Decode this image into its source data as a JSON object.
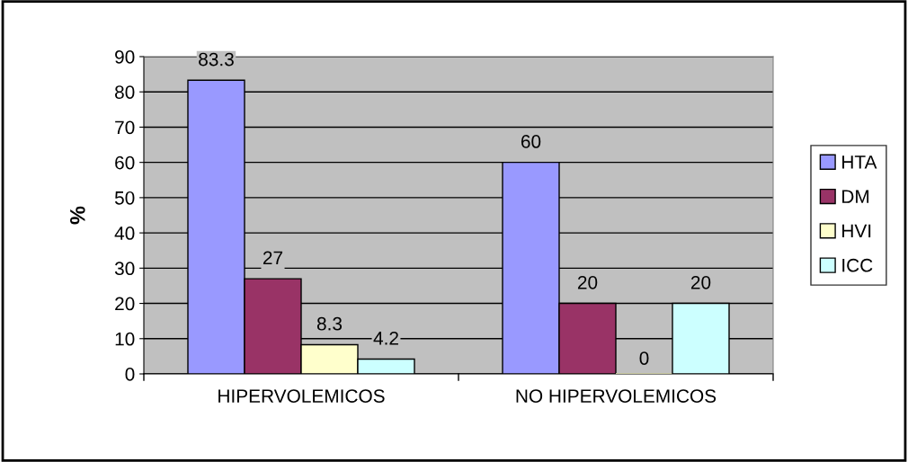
{
  "chart_data": {
    "type": "bar",
    "ylabel": "%",
    "categories": [
      "HIPERVOLEMICOS",
      "NO HIPERVOLEMICOS"
    ],
    "series": [
      {
        "name": "HTA",
        "color": "#9999ff",
        "values": [
          83.3,
          60
        ]
      },
      {
        "name": "DM",
        "color": "#993366",
        "values": [
          27,
          20
        ]
      },
      {
        "name": "HVI",
        "color": "#ffffcc",
        "values": [
          8.3,
          0
        ]
      },
      {
        "name": "ICC",
        "color": "#ccffff",
        "values": [
          4.2,
          20
        ]
      }
    ],
    "ylim": [
      0,
      90
    ],
    "yticks": [
      0,
      10,
      20,
      30,
      40,
      50,
      60,
      70,
      80,
      90
    ],
    "grid": "y",
    "legend": "right",
    "data_labels": true
  }
}
